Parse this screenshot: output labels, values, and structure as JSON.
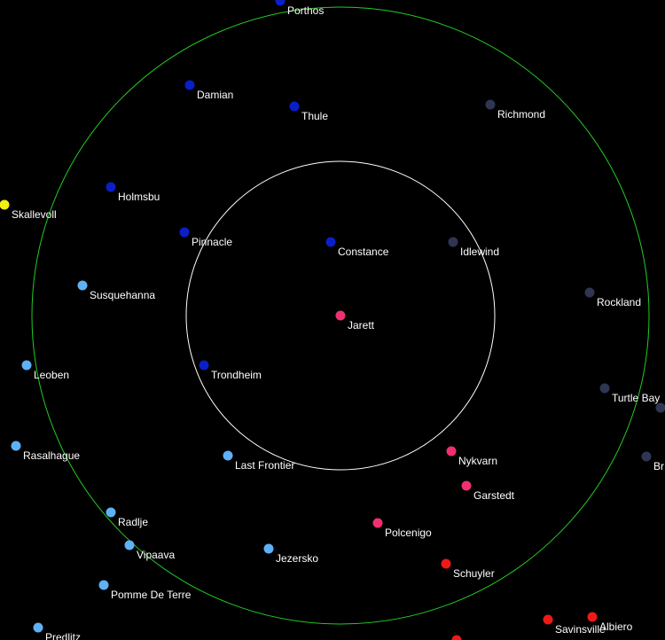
{
  "map": {
    "colors": {
      "background": "#000000",
      "outer_ring": "#22cc22",
      "inner_ring": "#ffffff",
      "label": "#ffffff"
    },
    "rings": [
      {
        "name": "outer-range-ring",
        "color": "#22cc22"
      },
      {
        "name": "inner-range-ring",
        "color": "#ffffff"
      }
    ],
    "systems": [
      {
        "name": "Porthos",
        "color": "#0a1fc8"
      },
      {
        "name": "Damian",
        "color": "#0a1fc8"
      },
      {
        "name": "Thule",
        "color": "#0a1fc8"
      },
      {
        "name": "Richmond",
        "color": "#2f3651"
      },
      {
        "name": "Holmsbu",
        "color": "#0a1fc8"
      },
      {
        "name": "Skallevoll",
        "color": "#f2ef14"
      },
      {
        "name": "Pinnacle",
        "color": "#0a1fc8"
      },
      {
        "name": "Constance",
        "color": "#0a1fc8"
      },
      {
        "name": "Idlewind",
        "color": "#2f3651"
      },
      {
        "name": "Susquehanna",
        "color": "#5eb1f5"
      },
      {
        "name": "Rockland",
        "color": "#2f3651"
      },
      {
        "name": "Jarett",
        "color": "#f0306e"
      },
      {
        "name": "Leoben",
        "color": "#5eb1f5"
      },
      {
        "name": "Trondheim",
        "color": "#0a1fc8"
      },
      {
        "name": "Turtle Bay",
        "color": "#2f3651"
      },
      {
        "name": "",
        "color": "#2f3651"
      },
      {
        "name": "Rasalhague",
        "color": "#5eb1f5"
      },
      {
        "name": "Last Frontier",
        "color": "#5eb1f5"
      },
      {
        "name": "Nykvarn",
        "color": "#f0306e"
      },
      {
        "name": "Br",
        "color": "#2f3651"
      },
      {
        "name": "Garstedt",
        "color": "#f0306e"
      },
      {
        "name": "Radlje",
        "color": "#5eb1f5"
      },
      {
        "name": "Polcenigo",
        "color": "#f0306e"
      },
      {
        "name": "Vipaava",
        "color": "#5eb1f5"
      },
      {
        "name": "Jezersko",
        "color": "#5eb1f5"
      },
      {
        "name": "Schuyler",
        "color": "#f01818"
      },
      {
        "name": "Pomme De Terre",
        "color": "#5eb1f5"
      },
      {
        "name": "Albiero",
        "color": "#f01818"
      },
      {
        "name": "Savinsville",
        "color": "#f01818"
      },
      {
        "name": "Predlitz",
        "color": "#5eb1f5"
      },
      {
        "name": "",
        "color": "#f01818"
      }
    ]
  }
}
